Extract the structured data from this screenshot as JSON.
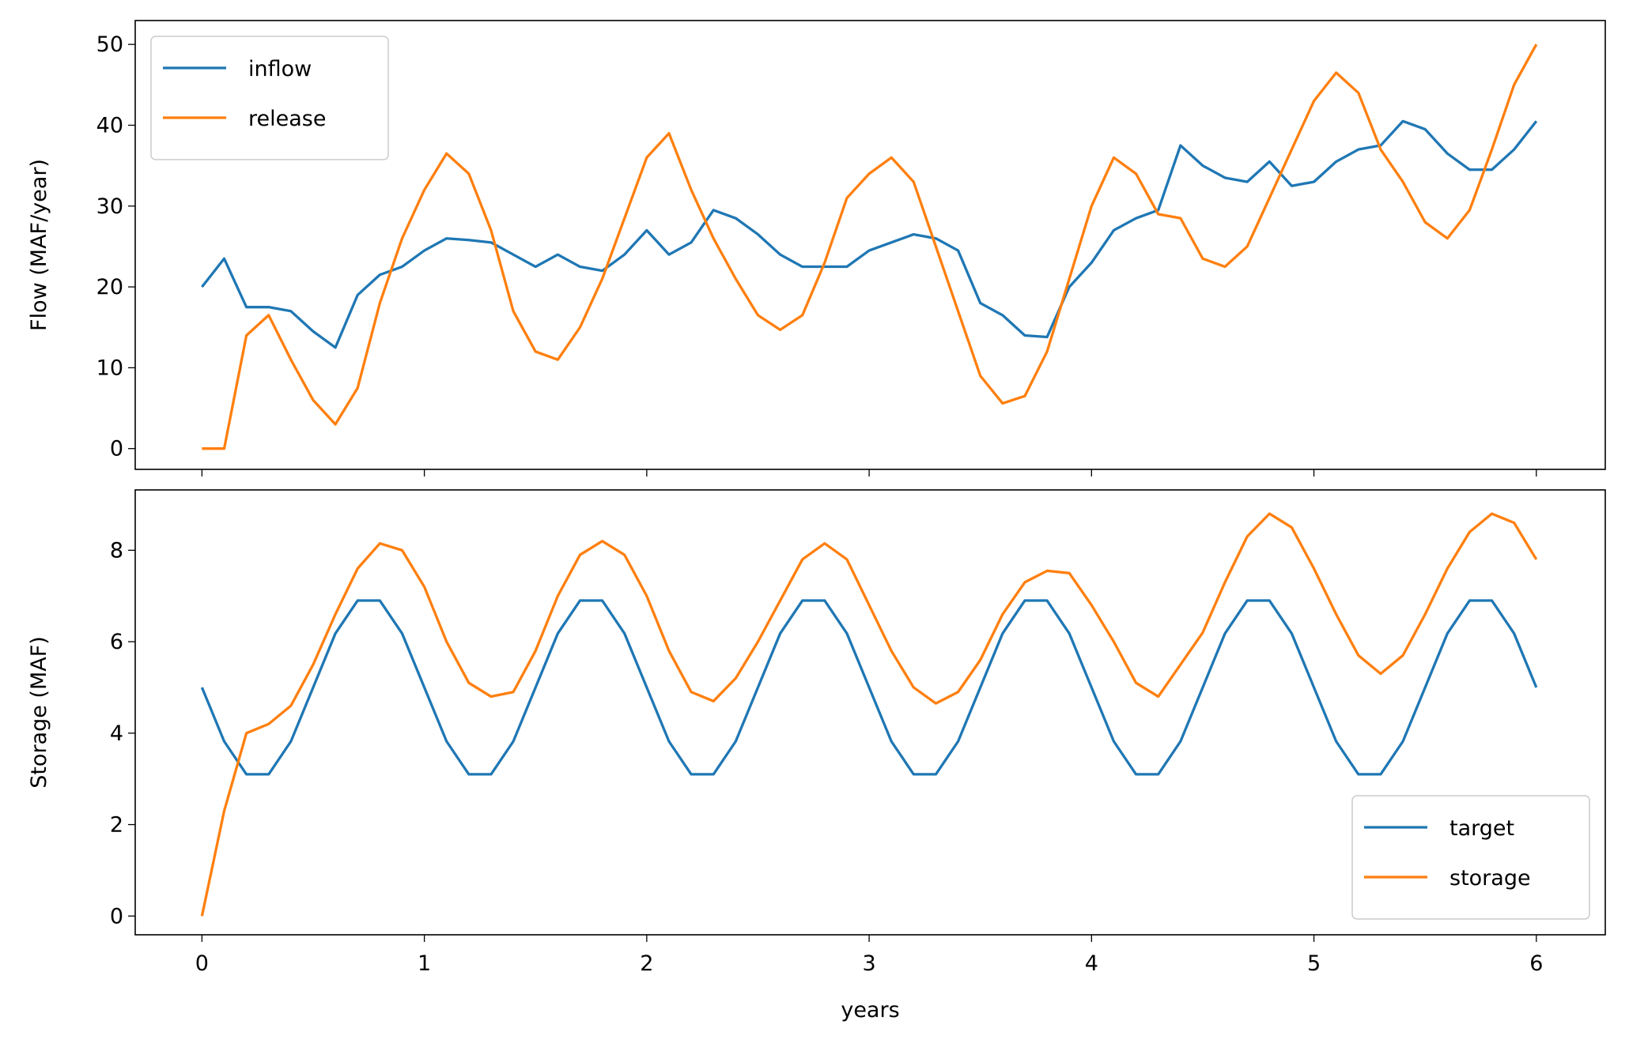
{
  "chart_data": [
    {
      "type": "line",
      "ylabel": "Flow (MAF/year)",
      "x": [
        0,
        0.1,
        0.2,
        0.3,
        0.4,
        0.5,
        0.6,
        0.7,
        0.8,
        0.9,
        1.0,
        1.1,
        1.2,
        1.3,
        1.4,
        1.5,
        1.6,
        1.7,
        1.8,
        1.9,
        2.0,
        2.1,
        2.2,
        2.3,
        2.4,
        2.5,
        2.6,
        2.7,
        2.8,
        2.9,
        3.0,
        3.1,
        3.2,
        3.3,
        3.4,
        3.5,
        3.6,
        3.7,
        3.8,
        3.9,
        4.0,
        4.1,
        4.2,
        4.3,
        4.4,
        4.5,
        4.6,
        4.7,
        4.8,
        4.9,
        5.0,
        5.1,
        5.2,
        5.3,
        5.4,
        5.5,
        5.6,
        5.7,
        5.8,
        5.9,
        6.0
      ],
      "series": [
        {
          "name": "inflow",
          "color": "#1f77b4",
          "values": [
            20,
            23.5,
            17.5,
            17.5,
            17,
            14.5,
            12.5,
            19,
            21.5,
            22.5,
            24.5,
            26,
            25.8,
            25.5,
            24,
            22.5,
            24,
            22.5,
            22,
            24,
            27,
            24,
            25.5,
            29.5,
            28.5,
            26.5,
            24,
            22.5,
            22.5,
            22.5,
            24.5,
            25.5,
            26.5,
            26,
            24.5,
            18,
            16.5,
            14,
            13.8,
            20,
            23,
            27,
            28.5,
            29.5,
            37.5,
            35,
            33.5,
            33,
            35.5,
            32.5,
            33,
            35.5,
            37,
            37.5,
            40.5,
            39.5,
            36.5,
            34.5,
            34.5,
            37,
            40.5
          ]
        },
        {
          "name": "release",
          "color": "#ff7f0e",
          "values": [
            0,
            0,
            14,
            16.5,
            11,
            6,
            3,
            7.5,
            18,
            26,
            32,
            36.5,
            34,
            27,
            17,
            12,
            11,
            15,
            21,
            28.5,
            36,
            39,
            32,
            26,
            21,
            16.5,
            14.7,
            16.5,
            23,
            31,
            34,
            36,
            33,
            25,
            17,
            9,
            5.6,
            6.5,
            12,
            21,
            30,
            36,
            34,
            29,
            28.5,
            23.5,
            22.5,
            25,
            31,
            37,
            43,
            46.5,
            44,
            37,
            33,
            28,
            26,
            29.5,
            37,
            45,
            50
          ]
        }
      ],
      "xlim": [
        -0.3,
        6.31
      ],
      "xticks": [
        0,
        1,
        2,
        3,
        4,
        5,
        6
      ],
      "ylim": [
        -2.57,
        52.95
      ],
      "yticks": [
        0,
        10,
        20,
        30,
        40,
        50
      ],
      "legend": "upper left"
    },
    {
      "type": "line",
      "ylabel": "Storage (MAF)",
      "xlabel": "years",
      "x": [
        0,
        0.1,
        0.2,
        0.3,
        0.4,
        0.5,
        0.6,
        0.7,
        0.8,
        0.9,
        1.0,
        1.1,
        1.2,
        1.3,
        1.4,
        1.5,
        1.6,
        1.7,
        1.8,
        1.9,
        2.0,
        2.1,
        2.2,
        2.3,
        2.4,
        2.5,
        2.6,
        2.7,
        2.8,
        2.9,
        3.0,
        3.1,
        3.2,
        3.3,
        3.4,
        3.5,
        3.6,
        3.7,
        3.8,
        3.9,
        4.0,
        4.1,
        4.2,
        4.3,
        4.4,
        4.5,
        4.6,
        4.7,
        4.8,
        4.9,
        5.0,
        5.1,
        5.2,
        5.3,
        5.4,
        5.5,
        5.6,
        5.7,
        5.8,
        5.9,
        6.0
      ],
      "series": [
        {
          "name": "target",
          "color": "#1f77b4",
          "values": [
            5,
            3.82,
            3.1,
            3.1,
            3.82,
            5,
            6.18,
            6.9,
            6.9,
            6.18,
            5,
            3.82,
            3.1,
            3.1,
            3.82,
            5,
            6.18,
            6.9,
            6.9,
            6.18,
            5,
            3.82,
            3.1,
            3.1,
            3.82,
            5,
            6.18,
            6.9,
            6.9,
            6.18,
            5,
            3.82,
            3.1,
            3.1,
            3.82,
            5,
            6.18,
            6.9,
            6.9,
            6.18,
            5,
            3.82,
            3.1,
            3.1,
            3.82,
            5,
            6.18,
            6.9,
            6.9,
            6.18,
            5,
            3.82,
            3.1,
            3.1,
            3.82,
            5,
            6.18,
            6.9,
            6.9,
            6.18,
            5
          ]
        },
        {
          "name": "storage",
          "color": "#ff7f0e",
          "values": [
            0,
            2.3,
            4.0,
            4.2,
            4.6,
            5.5,
            6.6,
            7.6,
            8.15,
            8.0,
            7.2,
            6.0,
            5.1,
            4.8,
            4.9,
            5.8,
            7.0,
            7.9,
            8.2,
            7.9,
            7.0,
            5.8,
            4.9,
            4.7,
            5.2,
            6.0,
            6.9,
            7.8,
            8.15,
            7.8,
            6.8,
            5.8,
            5.0,
            4.65,
            4.9,
            5.6,
            6.6,
            7.3,
            7.55,
            7.5,
            6.8,
            6.0,
            5.1,
            4.8,
            5.5,
            6.2,
            7.3,
            8.3,
            8.8,
            8.5,
            7.6,
            6.6,
            5.7,
            5.3,
            5.7,
            6.6,
            7.6,
            8.4,
            8.8,
            8.6,
            7.8
          ]
        }
      ],
      "xlim": [
        -0.3,
        6.31
      ],
      "xticks": [
        0,
        1,
        2,
        3,
        4,
        5,
        6
      ],
      "ylim": [
        -0.41,
        9.32
      ],
      "yticks": [
        0,
        2,
        4,
        6,
        8
      ],
      "legend": "lower right"
    }
  ]
}
